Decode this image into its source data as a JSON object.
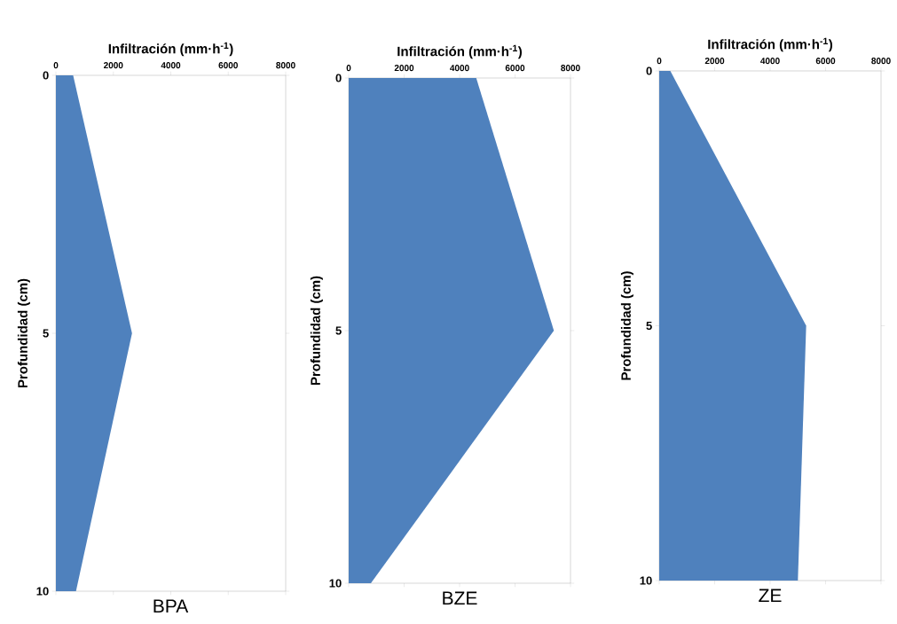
{
  "chart_data": [
    {
      "type": "area",
      "orientation": "horizontal",
      "xlabel": "Infiltración (mm·h$^{-1}$)",
      "ylabel": "Profundidad (cm)",
      "annotations": [
        "BPA"
      ],
      "color": "#4f81bd",
      "x": [
        0,
        5,
        10
      ],
      "values": [
        600,
        2650,
        700
      ],
      "xlim": [
        0,
        8000
      ],
      "xticks": [
        0,
        2000,
        4000,
        6000,
        8000
      ],
      "ylim": [
        10,
        0
      ],
      "yticks": [
        0,
        5,
        10
      ]
    },
    {
      "type": "area",
      "orientation": "horizontal",
      "xlabel": "Infiltración (mm·h$^{-1}$)",
      "ylabel": "Profundidad (cm)",
      "annotations": [
        "BZE"
      ],
      "color": "#4f81bd",
      "x": [
        0,
        5,
        10
      ],
      "values": [
        4600,
        7400,
        800
      ],
      "xlim": [
        0,
        8000
      ],
      "xticks": [
        0,
        2000,
        4000,
        6000,
        8000
      ],
      "ylim": [
        10,
        0
      ],
      "yticks": [
        0,
        5,
        10
      ]
    },
    {
      "type": "area",
      "orientation": "horizontal",
      "xlabel": "Infiltración (mm·h$^{-1}$)",
      "ylabel": "Profundidad (cm)",
      "annotations": [
        "ZE"
      ],
      "color": "#4f81bd",
      "x": [
        0,
        5,
        10
      ],
      "values": [
        400,
        5300,
        5000
      ],
      "xlim": [
        0,
        8000
      ],
      "xticks": [
        0,
        2000,
        4000,
        6000,
        8000
      ],
      "ylim": [
        10,
        0
      ],
      "yticks": [
        0,
        5,
        10
      ]
    }
  ]
}
